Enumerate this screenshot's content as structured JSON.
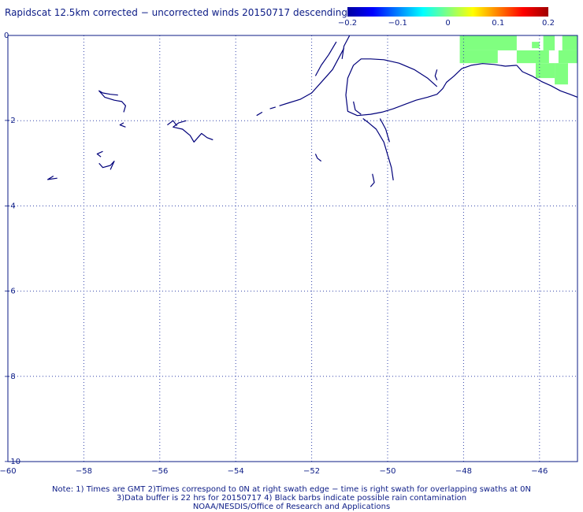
{
  "title": "Rapidscat 12.5km corrected − uncorrected winds 20150717 descending",
  "colorbar": {
    "min": -0.2,
    "max": 0.2,
    "ticks": [
      {
        "value": -0.2,
        "label": "−0.2"
      },
      {
        "value": -0.1,
        "label": "−0.1"
      },
      {
        "value": 0,
        "label": "0"
      },
      {
        "value": 0.1,
        "label": "0.1"
      },
      {
        "value": 0.2,
        "label": "0.2"
      }
    ],
    "colors": [
      "#0000a0",
      "#0000ff",
      "#0080ff",
      "#00ffff",
      "#80ff80",
      "#ffff00",
      "#ff8000",
      "#ff0000",
      "#a00000"
    ]
  },
  "map": {
    "lon_range": [
      -60,
      -45
    ],
    "lat_range": [
      -10,
      0
    ],
    "x_ticks": [
      {
        "value": -60,
        "label": "−60"
      },
      {
        "value": -58,
        "label": "−58"
      },
      {
        "value": -56,
        "label": "−56"
      },
      {
        "value": -54,
        "label": "−54"
      },
      {
        "value": -52,
        "label": "−52"
      },
      {
        "value": -50,
        "label": "−50"
      },
      {
        "value": -48,
        "label": "−48"
      },
      {
        "value": -46,
        "label": "−46"
      }
    ],
    "y_ticks": [
      {
        "value": 0,
        "label": "0"
      },
      {
        "value": -2,
        "label": "−2"
      },
      {
        "value": -4,
        "label": "−4"
      },
      {
        "value": -6,
        "label": "−6"
      },
      {
        "value": -8,
        "label": "−8"
      },
      {
        "value": -10,
        "label": "−10"
      }
    ],
    "grid": true,
    "coast_color": "#00007a",
    "swath_color": "#80ff80",
    "swath_cells": [
      {
        "lon": [
          -48.1,
          -46.6
        ],
        "lat": [
          -0.35,
          0
        ]
      },
      {
        "lon": [
          -48.1,
          -47.1
        ],
        "lat": [
          -0.65,
          -0.35
        ]
      },
      {
        "lon": [
          -46.6,
          -45.75
        ],
        "lat": [
          -0.65,
          -0.35
        ]
      },
      {
        "lon": [
          -45.4,
          -45.0
        ],
        "lat": [
          -0.35,
          0
        ]
      },
      {
        "lon": [
          -45.5,
          -45.0
        ],
        "lat": [
          -0.65,
          -0.35
        ]
      },
      {
        "lon": [
          -46.1,
          -45.6
        ],
        "lat": [
          -1.0,
          -0.65
        ]
      },
      {
        "lon": [
          -45.6,
          -45.25
        ],
        "lat": [
          -1.15,
          -0.65
        ]
      },
      {
        "lon": [
          -45.9,
          -45.6
        ],
        "lat": [
          -0.35,
          0
        ]
      },
      {
        "lon": [
          -46.2,
          -46.0
        ],
        "lat": [
          -0.3,
          -0.15
        ]
      }
    ],
    "coast_lines": [
      [
        [
          -46.6,
          -0.7
        ],
        [
          -46.9,
          -0.72
        ],
        [
          -47.2,
          -0.68
        ],
        [
          -47.5,
          -0.66
        ],
        [
          -47.8,
          -0.7
        ],
        [
          -48.05,
          -0.78
        ],
        [
          -48.25,
          -0.95
        ],
        [
          -48.45,
          -1.1
        ],
        [
          -48.55,
          -1.25
        ],
        [
          -48.7,
          -1.38
        ],
        [
          -48.95,
          -1.45
        ],
        [
          -49.25,
          -1.52
        ],
        [
          -49.55,
          -1.62
        ],
        [
          -49.85,
          -1.72
        ],
        [
          -50.15,
          -1.8
        ],
        [
          -50.45,
          -1.85
        ],
        [
          -50.8,
          -1.88
        ],
        [
          -51.05,
          -1.78
        ],
        [
          -51.1,
          -1.4
        ],
        [
          -51.05,
          -1.0
        ],
        [
          -50.9,
          -0.7
        ],
        [
          -50.7,
          -0.55
        ],
        [
          -50.45,
          -0.55
        ],
        [
          -50.1,
          -0.57
        ],
        [
          -49.7,
          -0.65
        ],
        [
          -49.3,
          -0.8
        ],
        [
          -48.95,
          -1.0
        ],
        [
          -48.7,
          -1.2
        ]
      ],
      [
        [
          -45.0,
          -1.45
        ],
        [
          -45.2,
          -1.38
        ],
        [
          -45.45,
          -1.3
        ],
        [
          -45.7,
          -1.18
        ],
        [
          -45.95,
          -1.08
        ],
        [
          -46.2,
          -0.95
        ],
        [
          -46.45,
          -0.85
        ],
        [
          -46.6,
          -0.7
        ]
      ],
      [
        [
          -51.15,
          -0.3
        ],
        [
          -51.3,
          -0.55
        ],
        [
          -51.45,
          -0.8
        ],
        [
          -51.7,
          -1.05
        ],
        [
          -52.0,
          -1.35
        ],
        [
          -52.3,
          -1.5
        ],
        [
          -52.6,
          -1.58
        ],
        [
          -52.85,
          -1.65
        ]
      ],
      [
        [
          -51.35,
          -0.15
        ],
        [
          -51.55,
          -0.45
        ],
        [
          -51.75,
          -0.7
        ],
        [
          -51.9,
          -0.95
        ]
      ],
      [
        [
          -51.0,
          0.0
        ],
        [
          -51.15,
          -0.25
        ],
        [
          -51.2,
          -0.55
        ]
      ],
      [
        [
          -50.65,
          -1.95
        ],
        [
          -50.5,
          -2.05
        ],
        [
          -50.3,
          -2.2
        ],
        [
          -50.1,
          -2.5
        ],
        [
          -50.0,
          -2.8
        ],
        [
          -49.9,
          -3.1
        ],
        [
          -49.85,
          -3.4
        ]
      ],
      [
        [
          -50.2,
          -1.95
        ],
        [
          -50.05,
          -2.2
        ],
        [
          -49.95,
          -2.5
        ]
      ],
      [
        [
          -50.4,
          -3.25
        ],
        [
          -50.35,
          -3.45
        ],
        [
          -50.45,
          -3.55
        ]
      ],
      [
        [
          -50.9,
          -1.55
        ],
        [
          -50.85,
          -1.75
        ],
        [
          -50.7,
          -1.85
        ]
      ],
      [
        [
          -48.7,
          -0.8
        ],
        [
          -48.75,
          -0.95
        ],
        [
          -48.7,
          -1.05
        ]
      ],
      [
        [
          -57.1,
          -1.4
        ],
        [
          -57.3,
          -1.38
        ],
        [
          -57.5,
          -1.35
        ],
        [
          -57.6,
          -1.3
        ],
        [
          -57.45,
          -1.45
        ],
        [
          -57.2,
          -1.52
        ],
        [
          -57.0,
          -1.55
        ],
        [
          -56.9,
          -1.65
        ],
        [
          -56.95,
          -1.8
        ]
      ],
      [
        [
          -56.95,
          -2.05
        ],
        [
          -57.05,
          -2.1
        ],
        [
          -56.9,
          -2.15
        ]
      ],
      [
        [
          -55.3,
          -2.0
        ],
        [
          -55.5,
          -2.05
        ],
        [
          -55.65,
          -2.15
        ],
        [
          -55.4,
          -2.2
        ],
        [
          -55.2,
          -2.35
        ],
        [
          -55.1,
          -2.5
        ],
        [
          -54.9,
          -2.3
        ],
        [
          -54.75,
          -2.4
        ],
        [
          -54.6,
          -2.45
        ]
      ],
      [
        [
          -55.8,
          -2.1
        ],
        [
          -55.65,
          -2.0
        ],
        [
          -55.55,
          -2.12
        ]
      ],
      [
        [
          -57.5,
          -2.72
        ],
        [
          -57.65,
          -2.78
        ],
        [
          -57.55,
          -2.85
        ]
      ],
      [
        [
          -57.6,
          -3.0
        ],
        [
          -57.5,
          -3.1
        ],
        [
          -57.3,
          -3.05
        ],
        [
          -57.2,
          -2.95
        ],
        [
          -57.3,
          -3.15
        ]
      ],
      [
        [
          -58.8,
          -3.3
        ],
        [
          -58.95,
          -3.38
        ],
        [
          -58.7,
          -3.35
        ]
      ],
      [
        [
          -51.9,
          -2.78
        ],
        [
          -51.85,
          -2.88
        ],
        [
          -51.75,
          -2.95
        ]
      ],
      [
        [
          -53.3,
          -1.8
        ],
        [
          -53.45,
          -1.88
        ]
      ],
      [
        [
          -52.95,
          -1.68
        ],
        [
          -53.1,
          -1.72
        ]
      ]
    ]
  },
  "notes": [
    "Note: 1) Times are GMT 2)Times correspond to 0N at right swath edge − time is right swath for overlapping swaths at 0N",
    "3)Data buffer is 22 hrs for 20150717 4) Black barbs indicate possible rain contamination",
    "NOAA/NESDIS/Office of Research and Applications"
  ]
}
